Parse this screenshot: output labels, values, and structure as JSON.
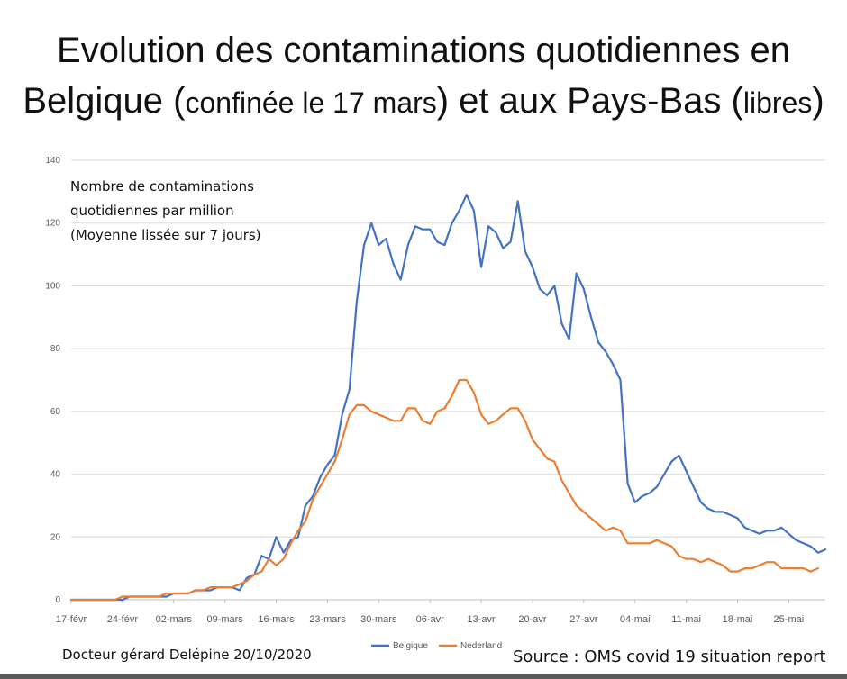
{
  "title": {
    "line1": "Evolution des contaminations quotidiennes en",
    "line2_a": "Belgique (",
    "line2_b": "confinée le 17 mars",
    "line2_c": ") et aux Pays-Bas (",
    "line2_d": "libres",
    "line2_e": ")"
  },
  "annotation": {
    "line1": "Nombre de contaminations",
    "line2": "quotidiennes par million",
    "line3": "(Moyenne lissée sur 7 jours)"
  },
  "author": "Docteur gérard Delépine 20/10/2020",
  "source": "Source : OMS covid 19 situation report",
  "chart_data": {
    "type": "line",
    "title": "Evolution des contaminations quotidiennes en Belgique (confinée le 17 mars) et aux Pays-Bas (libres)",
    "xlabel": "",
    "ylabel": "Nombre de contaminations quotidiennes par million (Moyenne lissée sur 7 jours)",
    "ylim": [
      0,
      140
    ],
    "yticks": [
      0,
      20,
      40,
      60,
      80,
      100,
      120,
      140
    ],
    "x_start": "17-févr",
    "xtick_labels": [
      "17-févr",
      "24-févr",
      "02-mars",
      "09-mars",
      "16-mars",
      "23-mars",
      "30-mars",
      "06-avr",
      "13-avr",
      "20-avr",
      "27-avr",
      "04-mai",
      "11-mai",
      "18-mai",
      "25-mai"
    ],
    "grid": true,
    "legend_position": "bottom",
    "series": [
      {
        "name": "Belgique",
        "color": "#4472C4",
        "values": [
          0,
          0,
          0,
          0,
          0,
          0,
          0,
          0,
          1,
          1,
          1,
          1,
          1,
          1,
          2,
          2,
          2,
          3,
          3,
          3,
          4,
          4,
          4,
          3,
          7,
          8,
          14,
          13,
          20,
          15,
          19,
          20,
          30,
          33,
          39,
          43,
          46,
          59,
          67,
          95,
          113,
          120,
          113,
          115,
          107,
          102,
          113,
          119,
          118,
          118,
          114,
          113,
          120,
          124,
          129,
          124,
          106,
          119,
          117,
          112,
          114,
          127,
          111,
          106,
          99,
          97,
          100,
          88,
          83,
          104,
          99,
          90,
          82,
          79,
          75,
          70,
          37,
          31,
          33,
          34,
          36,
          40,
          44,
          46,
          41,
          36,
          31,
          29,
          28,
          28,
          27,
          26,
          23,
          22,
          21,
          22,
          22,
          23,
          21,
          19,
          18,
          17,
          15,
          16
        ]
      },
      {
        "name": "Nederland",
        "color": "#ED7D31",
        "values": [
          0,
          0,
          0,
          0,
          0,
          0,
          0,
          1,
          1,
          1,
          1,
          1,
          1,
          2,
          2,
          2,
          2,
          3,
          3,
          4,
          4,
          4,
          4,
          5,
          6,
          8,
          9,
          13,
          11,
          13,
          18,
          22,
          25,
          32,
          36,
          40,
          44,
          51,
          59,
          62,
          62,
          60,
          59,
          58,
          57,
          57,
          61,
          61,
          57,
          56,
          60,
          61,
          65,
          70,
          70,
          66,
          59,
          56,
          57,
          59,
          61,
          61,
          57,
          51,
          48,
          45,
          44,
          38,
          34,
          30,
          28,
          26,
          24,
          22,
          23,
          22,
          18,
          18,
          18,
          18,
          19,
          18,
          17,
          14,
          13,
          13,
          12,
          13,
          12,
          11,
          9,
          9,
          10,
          10,
          11,
          12,
          12,
          10,
          10,
          10,
          10,
          9,
          10
        ]
      }
    ]
  }
}
